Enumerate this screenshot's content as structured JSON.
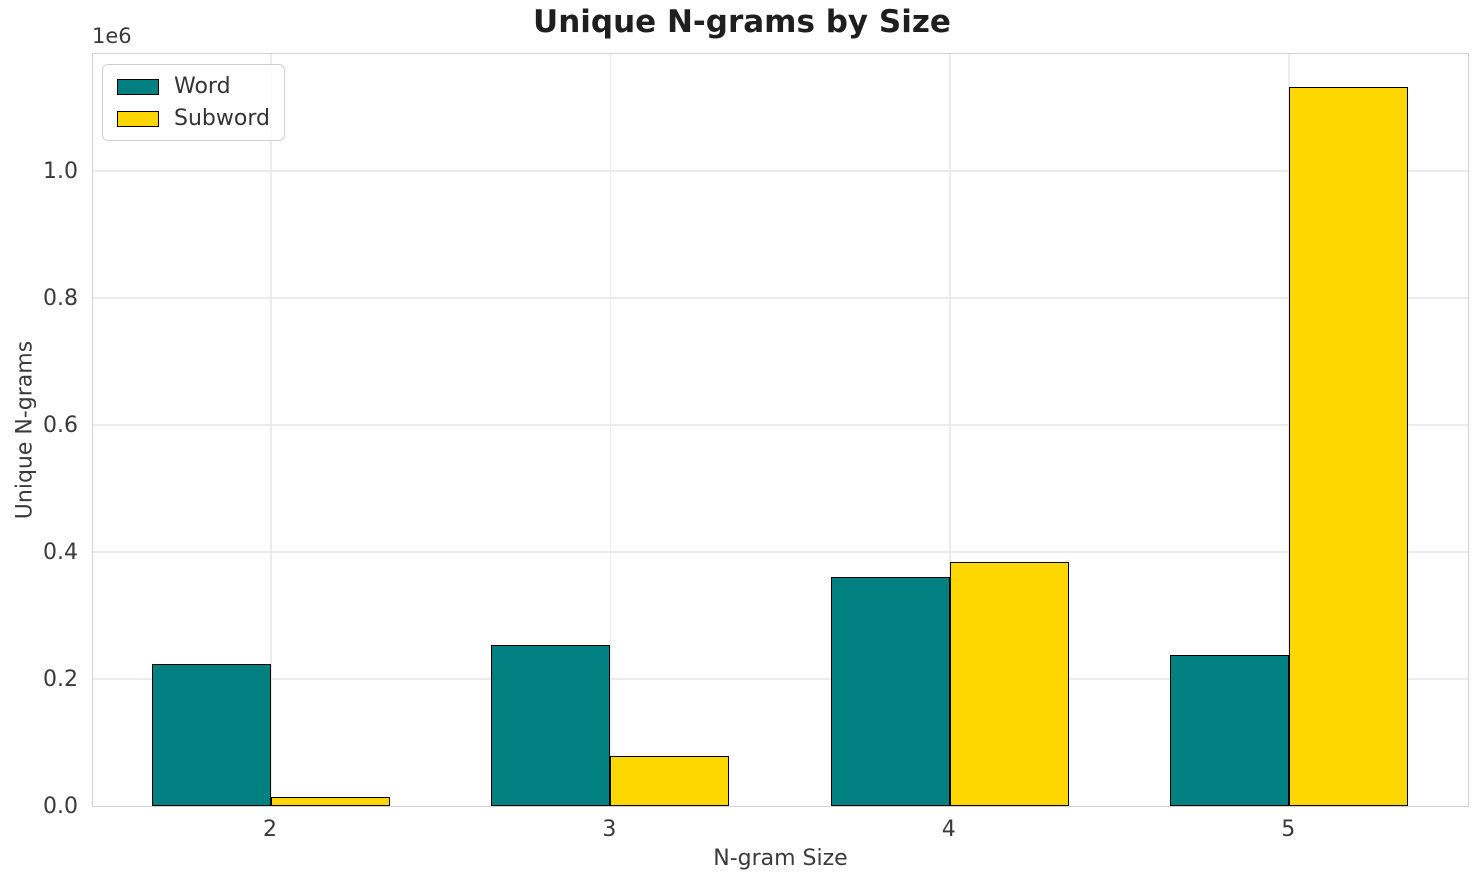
{
  "chart_data": {
    "type": "bar",
    "title": "Unique N-grams by Size",
    "xlabel": "N-gram Size",
    "ylabel": "Unique N-grams",
    "offset_text": "1e6",
    "categories": [
      "2",
      "3",
      "4",
      "5"
    ],
    "series": [
      {
        "name": "Word",
        "color": "#008080",
        "values": [
          224000,
          253000,
          360000,
          238000
        ]
      },
      {
        "name": "Subword",
        "color": "#ffd700",
        "values": [
          14000,
          79000,
          384000,
          1132000
        ]
      }
    ],
    "ylim": [
      0,
      1187000
    ],
    "yticks": {
      "values": [
        0,
        200000,
        400000,
        600000,
        800000,
        1000000
      ],
      "labels": [
        "0.0",
        "0.2",
        "0.4",
        "0.6",
        "0.8",
        "1.0"
      ]
    },
    "grid": true,
    "legend_position": "upper left",
    "bar_edge_color": "#000000"
  }
}
